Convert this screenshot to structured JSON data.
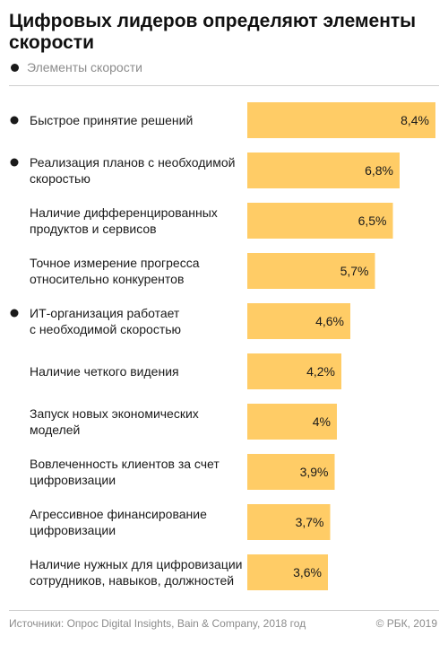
{
  "header": {
    "title": "Цифровых лидеров определяют элементы скорости"
  },
  "legend": {
    "label": "Элементы скорости",
    "marker_color": "#1a1a1a"
  },
  "colors": {
    "bar": "#ffcc66",
    "text": "#1a1a1a",
    "muted": "#8c8c8c"
  },
  "chart_data": {
    "type": "bar",
    "orientation": "horizontal",
    "unit": "%",
    "grid": false,
    "legend_position": "top-left",
    "xlim": [
      0,
      8.4
    ],
    "categories": [
      [
        "Быстрое принятие решений"
      ],
      [
        "Реализация планов с необходимой",
        "скоростью"
      ],
      [
        "Наличие дифференцированных",
        "продуктов и сервисов"
      ],
      [
        "Точное измерение прогресса",
        "относительно конкурентов"
      ],
      [
        "ИТ-организация работает",
        "с необходимой скоростью"
      ],
      [
        "Наличие четкого видения"
      ],
      [
        "Запуск новых экономических",
        "моделей"
      ],
      [
        "Вовлеченность клиентов за счет",
        "цифровизации"
      ],
      [
        "Агрессивное финансирование",
        "цифровизации"
      ],
      [
        "Наличие нужных для цифровизации",
        "сотрудников, навыков, должностей"
      ]
    ],
    "values": [
      8.4,
      6.8,
      6.5,
      5.7,
      4.6,
      4.2,
      4,
      3.9,
      3.7,
      3.6
    ],
    "value_labels": [
      "8,4%",
      "6,8%",
      "6,5%",
      "5,7%",
      "4,6%",
      "4,2%",
      "4%",
      "3,9%",
      "3,7%",
      "3,6%"
    ],
    "speed_element": [
      true,
      true,
      false,
      false,
      true,
      false,
      false,
      false,
      false,
      false
    ]
  },
  "footer": {
    "source": "Источники: Опрос Digital Insights, Bain & Company, 2018 год",
    "copyright": "© РБК, 2019"
  }
}
